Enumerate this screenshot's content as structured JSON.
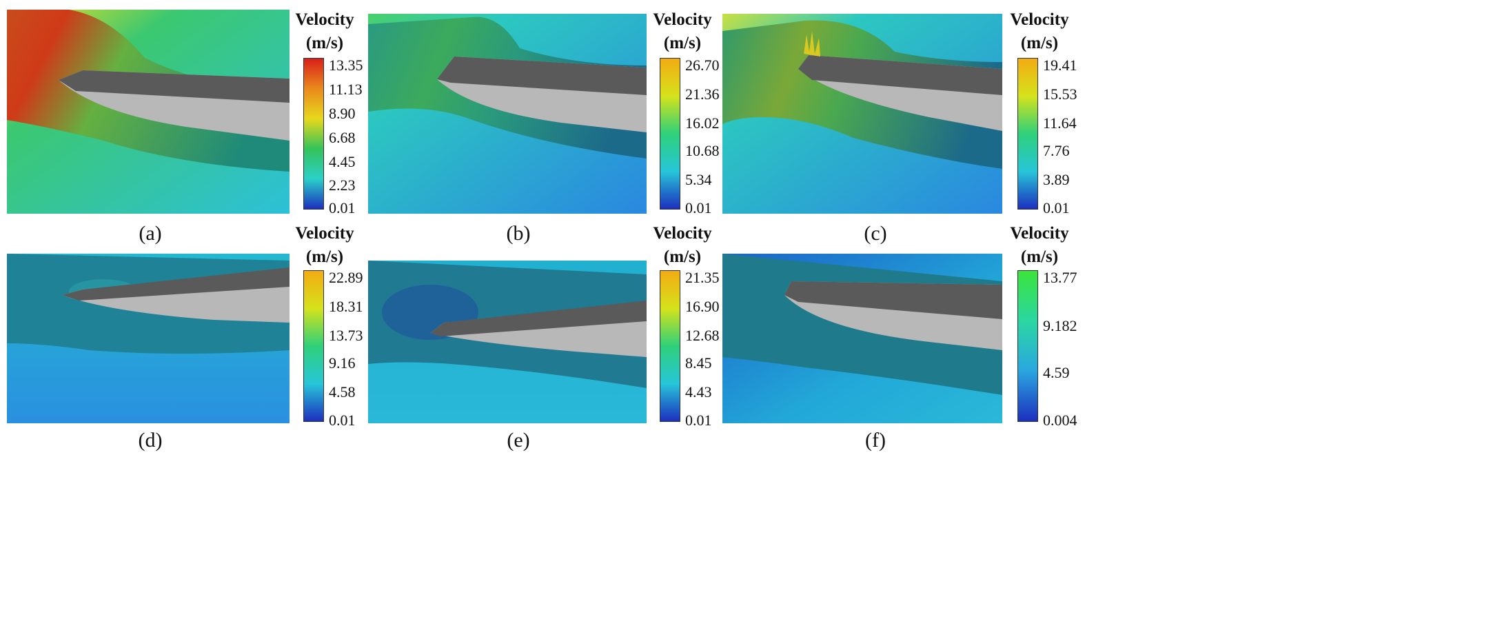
{
  "figure": {
    "panels": [
      {
        "caption": "(a)",
        "legend": {
          "title": "Velocity",
          "unit": "(m/s)",
          "ticks": [
            "13.35",
            "11.13",
            "8.90",
            "6.68",
            "4.45",
            "2.23",
            "0.01"
          ]
        },
        "colors": {
          "bar_top": "#d9201a",
          "bar_mid": "#e8d81c",
          "bar_low": "#35c35a",
          "bar_bottom": "#1c2fbf"
        }
      },
      {
        "caption": "(b)",
        "legend": {
          "title": "Velocity",
          "unit": "(m/s)",
          "ticks": [
            "26.70",
            "21.36",
            "16.02",
            "10.68",
            "5.34",
            "0.01"
          ]
        },
        "colors": {
          "bar_top": "#f3ab12",
          "bar_mid": "#d5e21c",
          "bar_low": "#2fd07a",
          "bar_bottom": "#1c2fbf"
        }
      },
      {
        "caption": "(c)",
        "legend": {
          "title": "Velocity",
          "unit": "(m/s)",
          "ticks": [
            "19.41",
            "15.53",
            "11.64",
            "7.76",
            "3.89",
            "0.01"
          ]
        },
        "colors": {
          "bar_top": "#f3ab12",
          "bar_mid": "#d5e21c",
          "bar_low": "#2fd07a",
          "bar_bottom": "#1c2fbf"
        }
      },
      {
        "caption": "(d)",
        "legend": {
          "title": "Velocity",
          "unit": "(m/s)",
          "ticks": [
            "22.89",
            "18.31",
            "13.73",
            "9.16",
            "4.58",
            "0.01"
          ]
        },
        "colors": {
          "bar_top": "#f3ab12",
          "bar_mid": "#d5e21c",
          "bar_low": "#2fd07a",
          "bar_bottom": "#1c2fbf"
        }
      },
      {
        "caption": "(e)",
        "legend": {
          "title": "Velocity",
          "unit": "(m/s)",
          "ticks": [
            "21.35",
            "16.90",
            "12.68",
            "8.45",
            "4.43",
            "0.01"
          ]
        },
        "colors": {
          "bar_top": "#f3ab12",
          "bar_mid": "#d5e21c",
          "bar_low": "#2fd07a",
          "bar_bottom": "#1c2fbf"
        }
      },
      {
        "caption": "(f)",
        "legend": {
          "title": "Velocity",
          "unit": "(m/s)",
          "ticks": [
            "13.77",
            "9.182",
            "4.59",
            "0.004"
          ]
        },
        "colors": {
          "bar_top": "#3be43a",
          "bar_mid": "#2bd7a0",
          "bar_low": "#2aa8e0",
          "bar_bottom": "#1c2fbf"
        }
      }
    ]
  }
}
